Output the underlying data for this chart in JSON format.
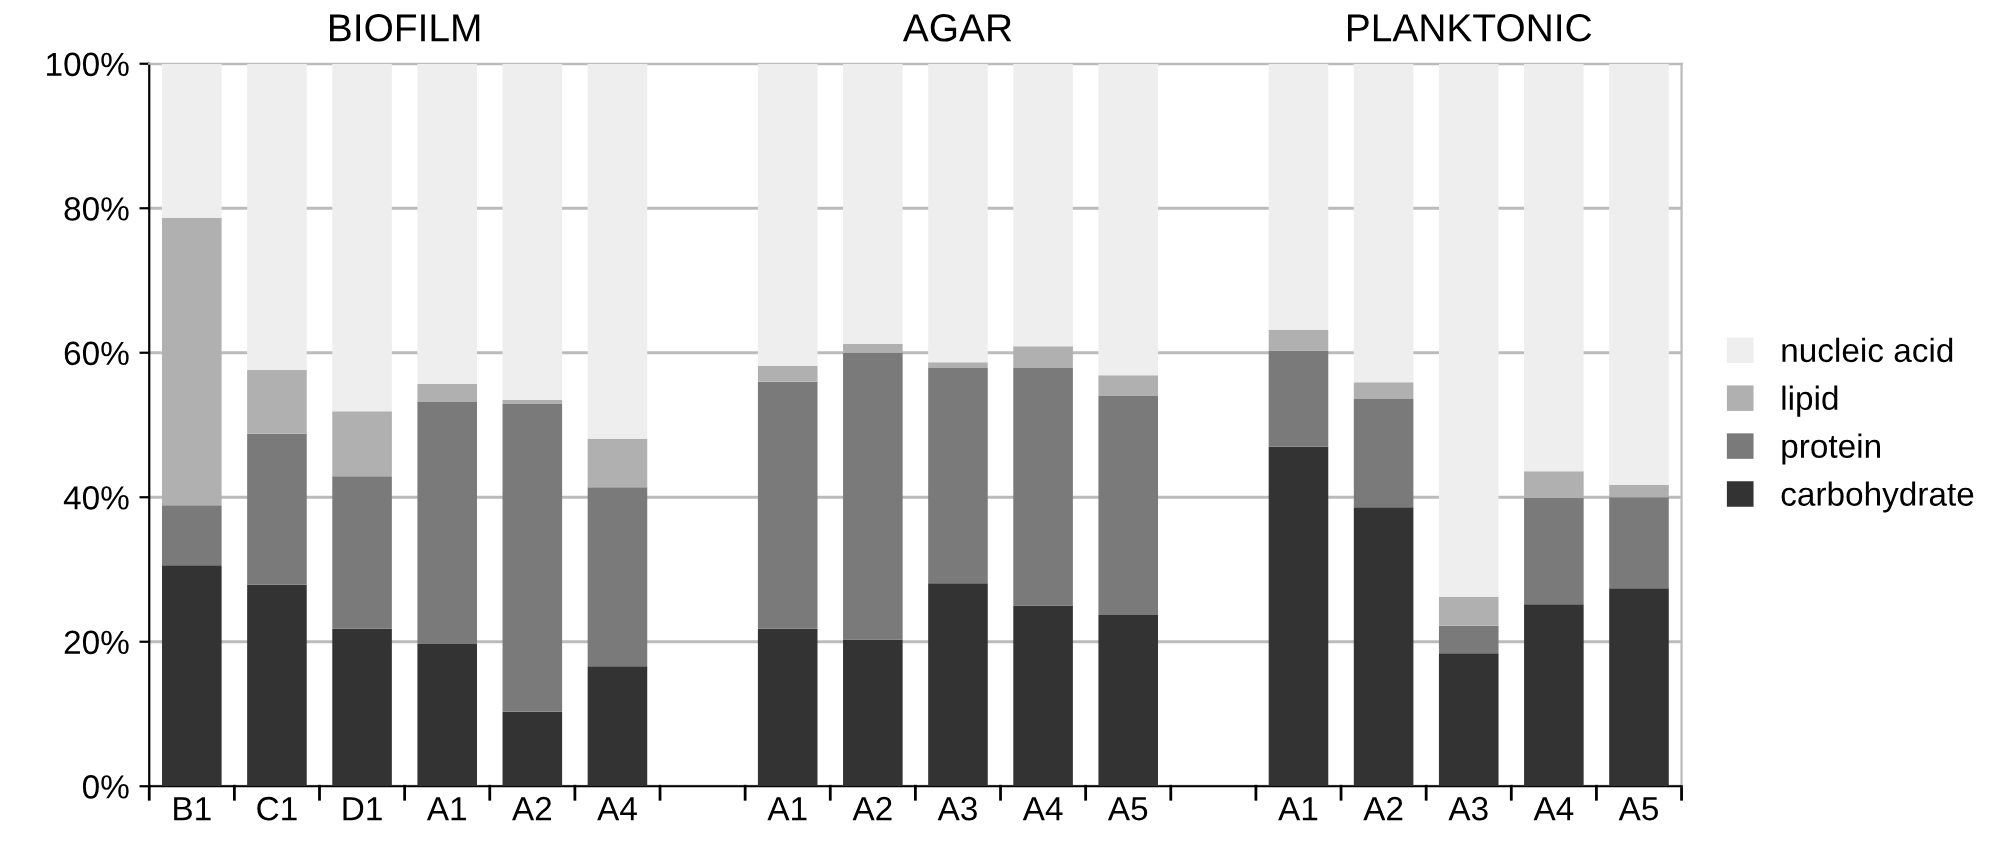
{
  "chart_data": {
    "type": "bar",
    "stacked": true,
    "categories": [
      "B1",
      "C1",
      "D1",
      "A1",
      "A2",
      "A4",
      null,
      "A1",
      "A2",
      "A3",
      "A4",
      "A5",
      null,
      "A1",
      "A2",
      "A3",
      "A4",
      "A5"
    ],
    "series": [
      {
        "name": "carbohydrate",
        "color": "#333333",
        "values": [
          30.6,
          27.9,
          21.8,
          19.7,
          10.3,
          16.6,
          null,
          21.8,
          20.3,
          28.1,
          25.0,
          23.7,
          null,
          47.0,
          38.6,
          18.4,
          25.2,
          27.4
        ]
      },
      {
        "name": "protein",
        "color": "#7a7a7a",
        "values": [
          8.3,
          20.9,
          21.1,
          33.5,
          42.6,
          24.8,
          null,
          34.2,
          39.7,
          29.8,
          32.9,
          30.3,
          null,
          13.3,
          15.0,
          3.8,
          14.7,
          12.6
        ]
      },
      {
        "name": "lipid",
        "color": "#b0b0b0",
        "values": [
          39.8,
          8.8,
          9.0,
          2.5,
          0.6,
          6.7,
          null,
          2.2,
          1.2,
          0.8,
          3.0,
          2.9,
          null,
          2.9,
          2.3,
          4.0,
          3.7,
          1.7
        ]
      },
      {
        "name": "nucleic acid",
        "color": "#eeeeee",
        "values": [
          21.3,
          42.4,
          48.1,
          44.3,
          46.5,
          51.9,
          null,
          41.8,
          38.8,
          41.3,
          39.1,
          43.1,
          null,
          36.8,
          44.1,
          73.8,
          56.4,
          58.3
        ]
      }
    ],
    "ylim": [
      0,
      100
    ],
    "yticks": [
      {
        "value": 0,
        "label": "0%"
      },
      {
        "value": 20,
        "label": "20%"
      },
      {
        "value": 40,
        "label": "40%"
      },
      {
        "value": 60,
        "label": "60%"
      },
      {
        "value": 80,
        "label": "80%"
      },
      {
        "value": 100,
        "label": "100%"
      }
    ],
    "annotations": [
      "BIOFILM",
      "AGAR",
      "PLANKTONIC"
    ],
    "grid": "y",
    "legend": "right"
  }
}
